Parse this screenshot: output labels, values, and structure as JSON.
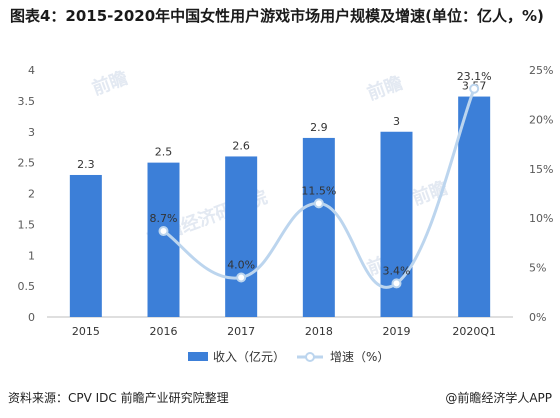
{
  "title": "图表4：2015-2020年中国女性用户游戏市场用户规模及增速(单位：亿人，%)",
  "footer": {
    "source": "资料来源：CPV IDC 前瞻产业研究院整理",
    "brand": "@前瞻经济学人APP"
  },
  "watermarks": [
    "前瞻",
    "前瞻",
    "前瞻",
    "前瞻经济研究院",
    "前瞻"
  ],
  "chart_data": {
    "type": "bar",
    "categories": [
      "2015",
      "2016",
      "2017",
      "2018",
      "2019",
      "2020Q1"
    ],
    "series": [
      {
        "name": "收入（亿元）",
        "type": "bar",
        "axis": "left",
        "values": [
          2.3,
          2.5,
          2.6,
          2.9,
          3,
          3.57
        ],
        "labels": [
          "2.3",
          "2.5",
          "2.6",
          "2.9",
          "3",
          "3.57"
        ],
        "color": "#3c7fd8"
      },
      {
        "name": "增速（%）",
        "type": "line",
        "axis": "right",
        "values": [
          null,
          8.7,
          4.0,
          11.5,
          3.4,
          23.1
        ],
        "labels": [
          "",
          "8.7%",
          "4.0%",
          "11.5%",
          "3.4%",
          "23.1%"
        ],
        "color": "#bcd5ee"
      }
    ],
    "left_axis": {
      "min": 0,
      "max": 4,
      "step": 0.5,
      "ticks": [
        "0",
        "0.5",
        "1",
        "1.5",
        "2",
        "2.5",
        "3",
        "3.5",
        "4"
      ]
    },
    "right_axis": {
      "min": 0,
      "max": 25,
      "step": 5,
      "ticks": [
        "0%",
        "5%",
        "10%",
        "15%",
        "20%",
        "25%"
      ]
    },
    "grid": false,
    "legend_position": "bottom"
  }
}
